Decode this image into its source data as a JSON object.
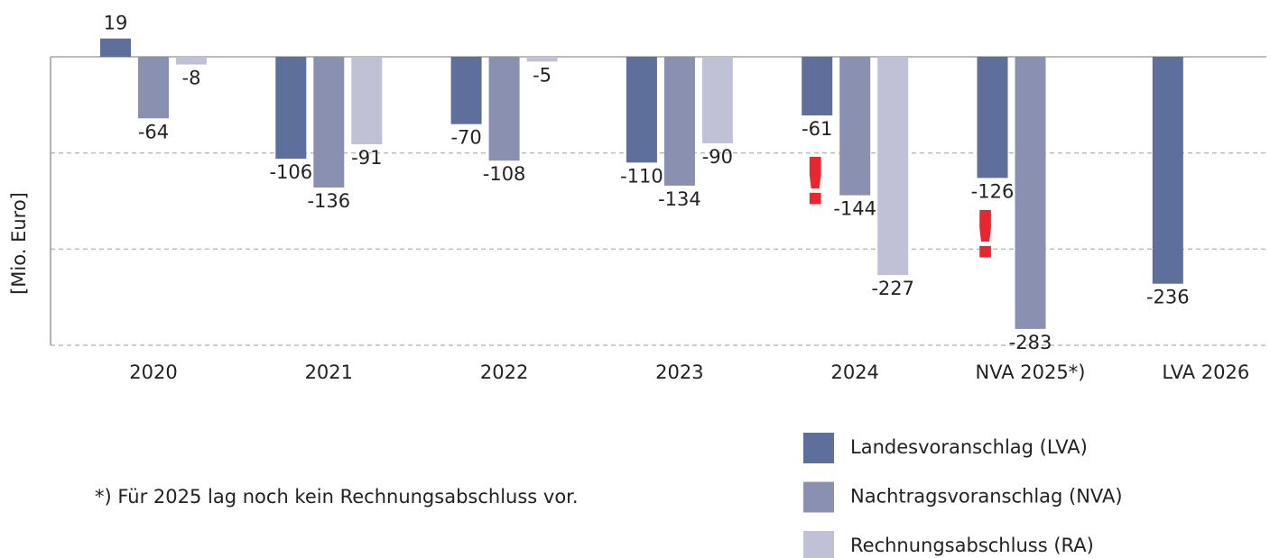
{
  "chart_data": {
    "type": "bar",
    "y_axis_label": "[Mio.  Euro]",
    "categories": [
      "2020",
      "2021",
      "2022",
      "2023",
      "2024",
      "NVA 2025*)",
      "LVA 2026"
    ],
    "series": [
      {
        "name": "Landesvoranschlag (LVA)",
        "color": "#5f6f9b",
        "values": [
          19,
          -106,
          -70,
          -110,
          -61,
          -126,
          -236
        ]
      },
      {
        "name": "Nachtragsvoranschlag (NVA)",
        "color": "#8a90b0",
        "values": [
          -64,
          -136,
          -108,
          -134,
          -144,
          -283,
          null
        ]
      },
      {
        "name": "Rechnungsabschluss (RA)",
        "color": "#c0c1d6",
        "values": [
          -8,
          -91,
          -5,
          -90,
          -227,
          null,
          null
        ]
      }
    ],
    "ylim": [
      -300,
      0
    ],
    "yticks": [
      -100,
      -200,
      -300
    ],
    "grid": true,
    "annotations": [
      "!",
      "!"
    ],
    "footnote": "*) Für 2025 lag noch kein Rechnungsabschluss vor."
  }
}
